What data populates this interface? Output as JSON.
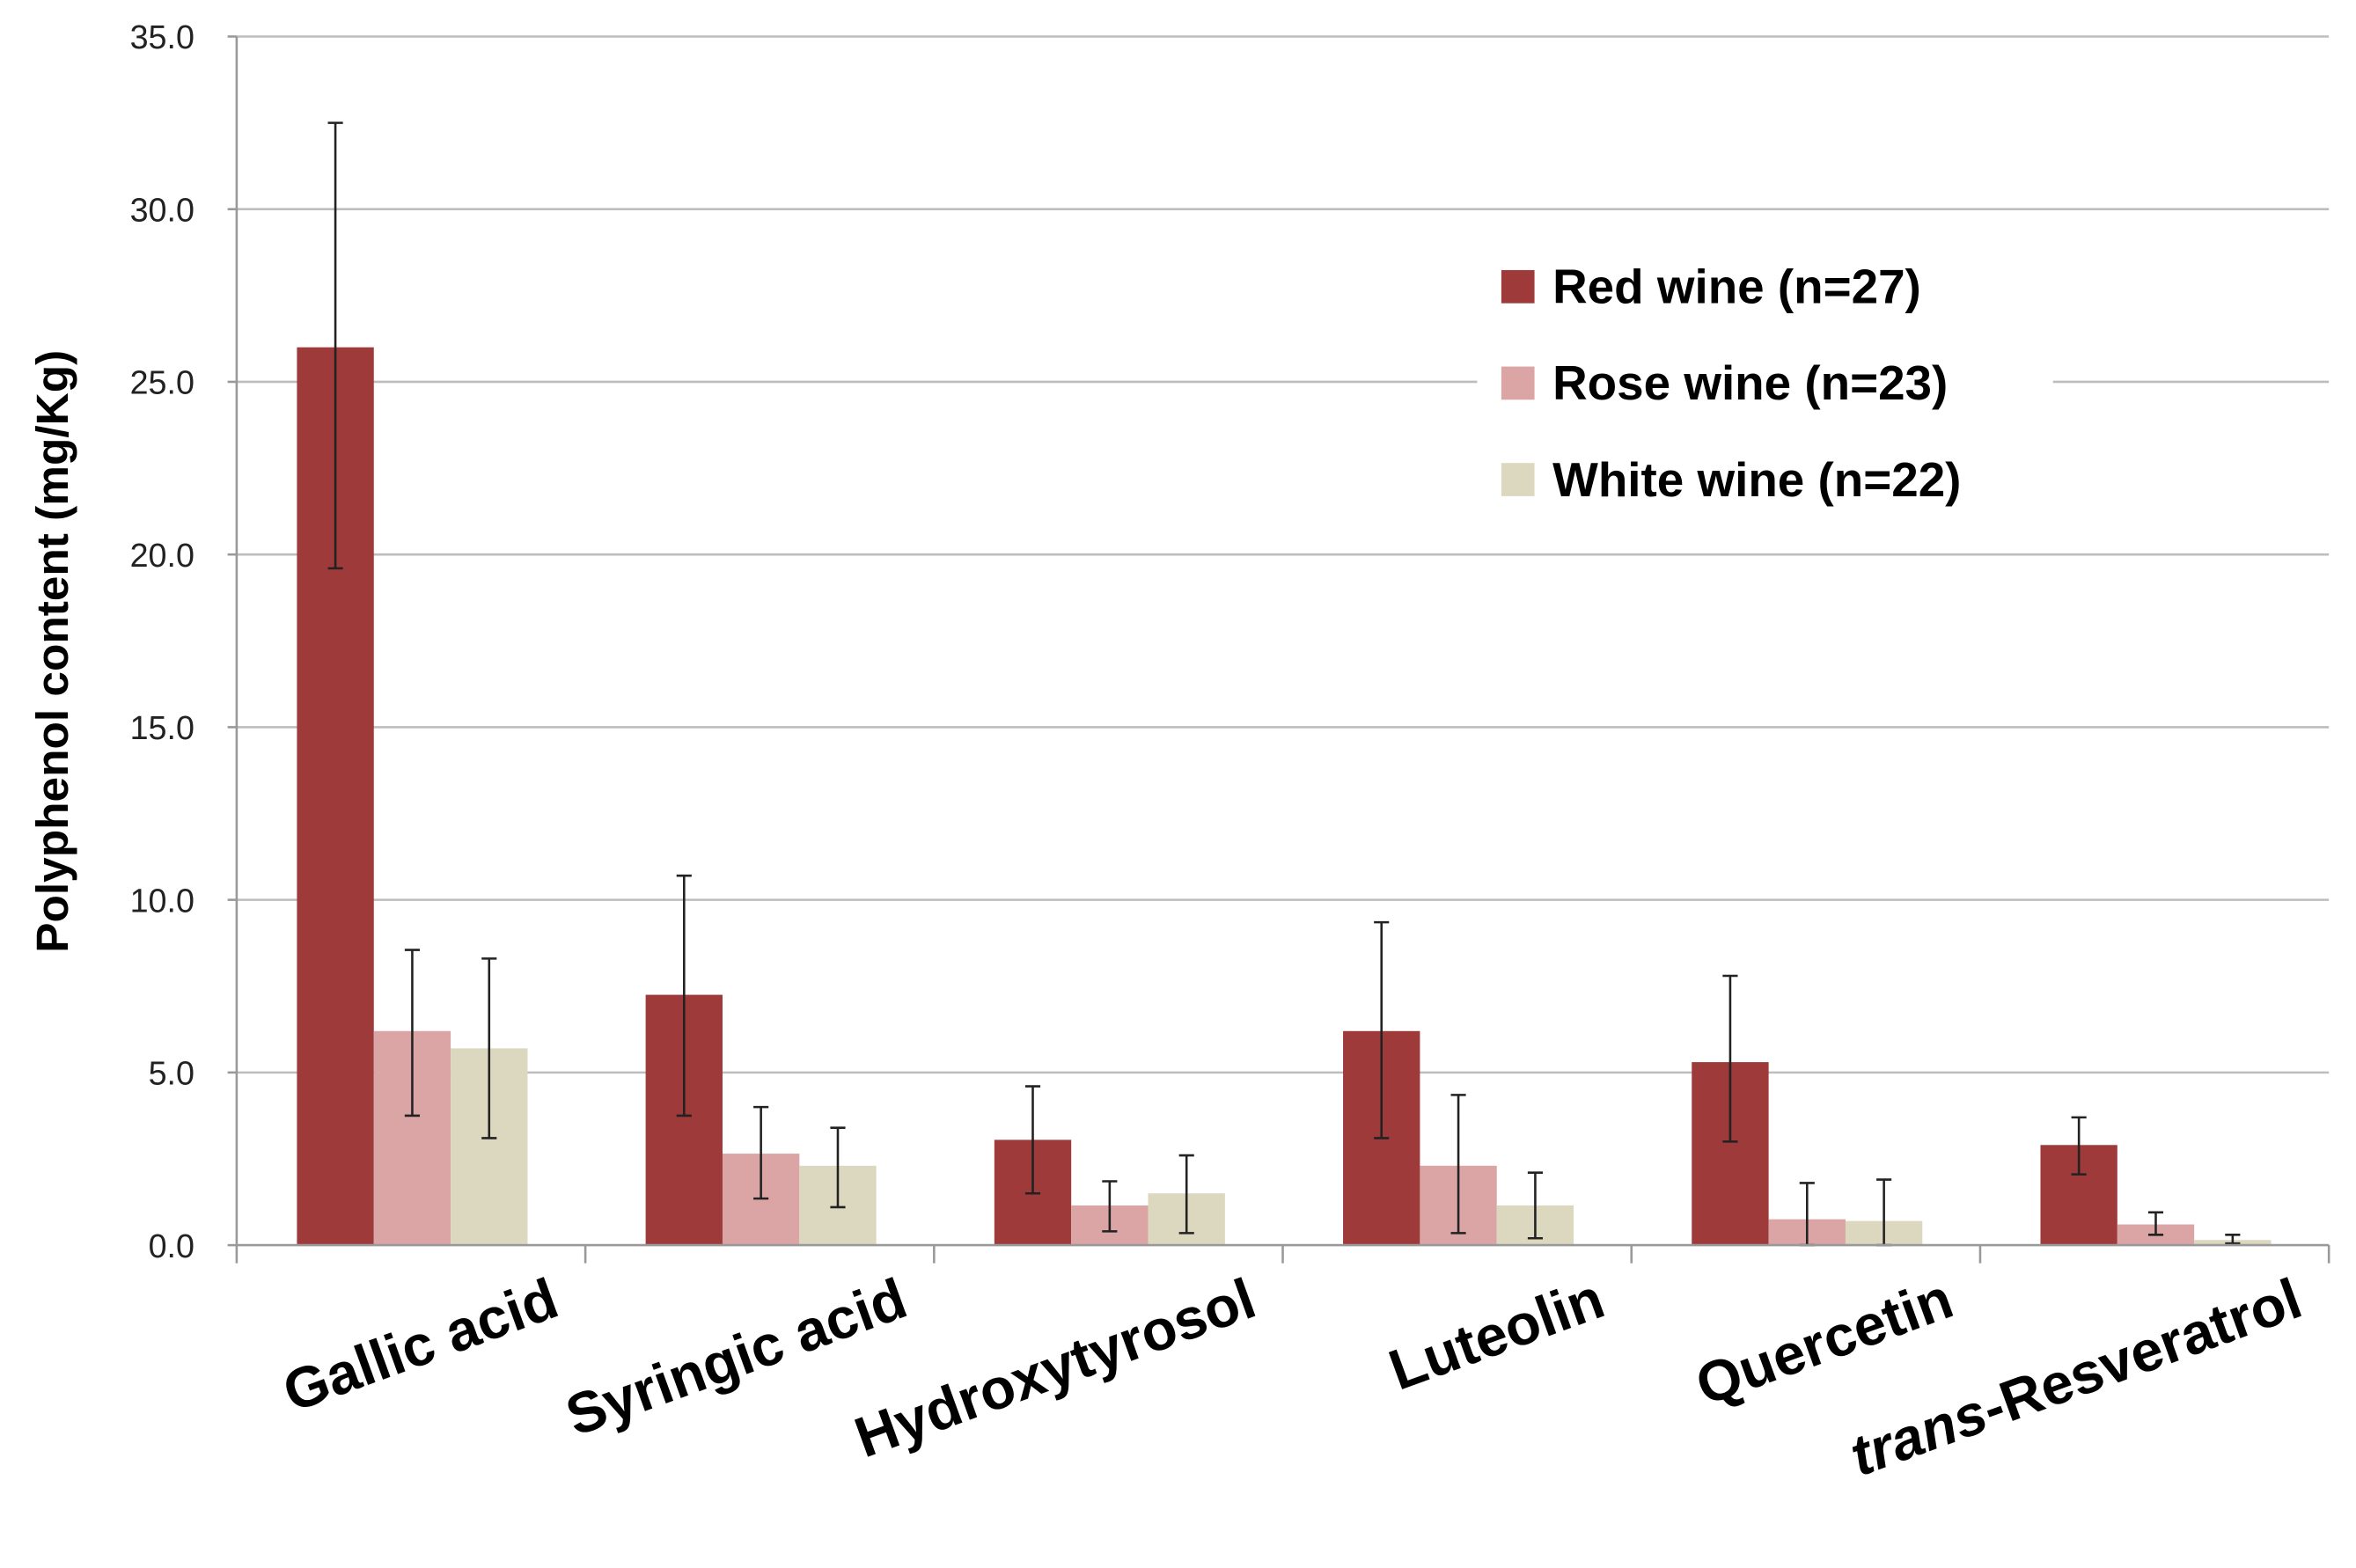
{
  "chart_data": {
    "type": "bar",
    "title": "",
    "xlabel": "",
    "ylabel": "Polyphenol content (mg/Kg)",
    "ylim": [
      0,
      35
    ],
    "yticks": [
      "0.0",
      "5.0",
      "10.0",
      "15.0",
      "20.0",
      "25.0",
      "30.0",
      "35.0"
    ],
    "grid": true,
    "legend_position": "top-right",
    "categories": [
      {
        "prefix": "",
        "italic_prefix": "",
        "label": "Gallic acid"
      },
      {
        "prefix": "",
        "italic_prefix": "",
        "label": "Syringic acid"
      },
      {
        "prefix": "",
        "italic_prefix": "",
        "label": "Hydroxytyrosol"
      },
      {
        "prefix": "",
        "italic_prefix": "",
        "label": "Luteolin"
      },
      {
        "prefix": "",
        "italic_prefix": "",
        "label": "Quercetin"
      },
      {
        "prefix": "",
        "italic_prefix": "trans",
        "label": "-Resveratrol"
      }
    ],
    "series": [
      {
        "name": "Red wine (n=27)",
        "color": "#9e3a3a",
        "values": [
          26.0,
          7.25,
          3.05,
          6.2,
          5.3,
          2.9
        ],
        "error_high": [
          32.5,
          10.7,
          4.6,
          9.35,
          7.8,
          3.7
        ],
        "error_low": [
          19.6,
          3.75,
          1.5,
          3.1,
          3.0,
          2.05
        ]
      },
      {
        "name": "Rose wine (n=23)",
        "color": "#dba5a5",
        "values": [
          6.2,
          2.65,
          1.15,
          2.3,
          0.75,
          0.6
        ],
        "error_high": [
          8.55,
          4.0,
          1.85,
          4.35,
          1.8,
          0.95
        ],
        "error_low": [
          3.75,
          1.35,
          0.4,
          0.35,
          0.0,
          0.3
        ]
      },
      {
        "name": "White wine (n=22)",
        "color": "#dcd8c0",
        "values": [
          5.7,
          2.3,
          1.5,
          1.15,
          0.7,
          0.15
        ],
        "error_high": [
          8.3,
          3.4,
          2.6,
          2.1,
          1.9,
          0.3
        ],
        "error_low": [
          3.1,
          1.1,
          0.35,
          0.2,
          0.0,
          0.05
        ]
      }
    ]
  }
}
